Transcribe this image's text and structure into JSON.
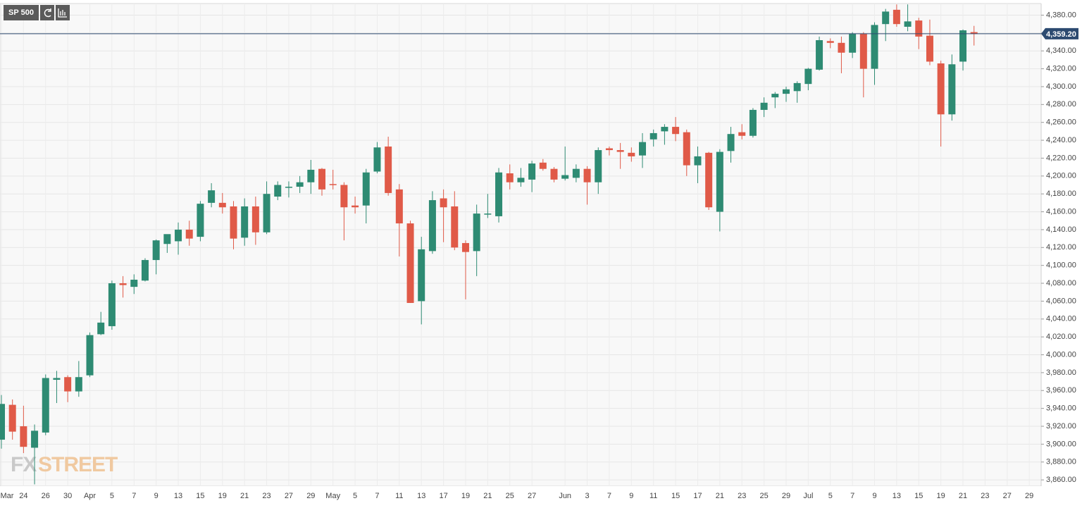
{
  "symbol": "SP 500",
  "watermark": [
    "FX",
    "STREET"
  ],
  "chart_data": {
    "type": "candlestick",
    "categories": [
      "Mar",
      null,
      "24",
      null,
      "26",
      null,
      "30",
      null,
      "Apr",
      null,
      "5",
      null,
      "7",
      null,
      "9",
      null,
      "13",
      null,
      "15",
      null,
      "19",
      null,
      "21",
      null,
      "23",
      null,
      "27",
      null,
      "29",
      null,
      "May",
      null,
      "5",
      null,
      "7",
      null,
      "11",
      null,
      "13",
      null,
      "17",
      null,
      "19",
      null,
      "21",
      null,
      "25",
      null,
      "27",
      null,
      null,
      "Jun",
      null,
      "3",
      null,
      "7",
      null,
      "9",
      null,
      "11",
      null,
      "15",
      null,
      "17",
      null,
      "21",
      null,
      "23",
      null,
      "25",
      null,
      "29",
      null,
      "Jul",
      null,
      "5",
      null,
      "7",
      null,
      "9",
      null,
      "13",
      null,
      "15",
      null,
      "19",
      null,
      "21",
      null,
      "23",
      null,
      "27",
      null,
      "29"
    ],
    "open": [
      3905,
      3944,
      3920,
      3896,
      3913,
      3972,
      3975,
      3959,
      3977,
      4023,
      4032,
      4080,
      4076,
      4083,
      4106,
      4124,
      4127,
      4140,
      4132,
      4170,
      4170,
      4166,
      4131,
      4166,
      4137,
      4177,
      4188,
      4188,
      4193,
      4208,
      4191,
      4190,
      4167,
      4167,
      4205,
      4233,
      4185,
      4147,
      4060,
      4116,
      4175,
      4166,
      4125,
      4116,
      4158,
      4155,
      4203,
      4193,
      4196,
      4215,
      4208,
      4197,
      4198,
      4208,
      4193,
      4231,
      4229,
      4226,
      4223,
      4241,
      4250,
      4255,
      4249,
      4212,
      4226,
      4160,
      4228,
      4249,
      4245,
      4274,
      4288,
      4292,
      4295,
      4303,
      4319,
      4351,
      4349,
      4338,
      4359,
      4320,
      4370,
      4386,
      4367,
      4374,
      4357,
      4326,
      4269,
      4328,
      4361,
      null,
      null,
      null,
      null,
      null
    ],
    "high": [
      3955,
      3950,
      3943,
      3922,
      3978,
      3982,
      3977,
      3993,
      4025,
      4048,
      4083,
      4088,
      4090,
      4108,
      4129,
      4132,
      4148,
      4150,
      4172,
      4192,
      4181,
      4172,
      4175,
      4177,
      4194,
      4194,
      4194,
      4200,
      4218,
      4209,
      4207,
      4193,
      4177,
      4208,
      4238,
      4244,
      4191,
      4150,
      4132,
      4183,
      4185,
      4183,
      4128,
      4168,
      4180,
      4209,
      4213,
      4209,
      4217,
      4219,
      4210,
      4233,
      4213,
      4211,
      4232,
      4233,
      4237,
      4232,
      4248,
      4252,
      4258,
      4266,
      4252,
      4233,
      4227,
      4230,
      4255,
      4258,
      4276,
      4288,
      4294,
      4300,
      4306,
      4321,
      4356,
      4354,
      4356,
      4361,
      4361,
      4372,
      4387,
      4392,
      4392,
      4377,
      4375,
      4329,
      4336,
      4364,
      4368,
      null,
      null,
      null,
      null,
      null
    ],
    "low": [
      3895,
      3905,
      3890,
      3855,
      3910,
      3946,
      3947,
      3953,
      3975,
      4022,
      4028,
      4064,
      4068,
      4082,
      4090,
      4114,
      4112,
      4122,
      4127,
      4165,
      4158,
      4118,
      4122,
      4123,
      4135,
      4173,
      4176,
      4181,
      4180,
      4178,
      4185,
      4128,
      4158,
      4147,
      4203,
      4178,
      4110,
      4058,
      4034,
      4113,
      4126,
      4117,
      4062,
      4088,
      4153,
      4148,
      4185,
      4188,
      4182,
      4206,
      4193,
      4195,
      4193,
      4168,
      4180,
      4223,
      4208,
      4216,
      4209,
      4233,
      4235,
      4239,
      4200,
      4192,
      4162,
      4138,
      4215,
      4241,
      4243,
      4266,
      4276,
      4283,
      4282,
      4296,
      4318,
      4343,
      4315,
      4332,
      4288,
      4302,
      4351,
      4367,
      4362,
      4342,
      4324,
      4233,
      4262,
      4318,
      4346,
      null,
      null,
      null,
      null,
      null
    ],
    "close": [
      3945,
      3914,
      3897,
      3915,
      3974,
      3974,
      3959,
      3975,
      4022,
      4036,
      4080,
      4078,
      4084,
      4106,
      4128,
      4135,
      4140,
      4130,
      4169,
      4184,
      4165,
      4130,
      4166,
      4137,
      4180,
      4190,
      4188,
      4193,
      4207,
      4185,
      4190,
      4165,
      4165,
      4204,
      4232,
      4181,
      4147,
      4058,
      4118,
      4173,
      4165,
      4120,
      4115,
      4158,
      4158,
      4204,
      4193,
      4198,
      4214,
      4208,
      4196,
      4201,
      4208,
      4193,
      4229,
      4229,
      4227,
      4222,
      4238,
      4248,
      4255,
      4247,
      4212,
      4222,
      4165,
      4227,
      4247,
      4245,
      4274,
      4282,
      4292,
      4297,
      4304,
      4320,
      4352,
      4349,
      4338,
      4359,
      4320,
      4369,
      4384,
      4370,
      4373,
      4356,
      4328,
      4269,
      4325,
      4363,
      4359.2,
      null,
      null,
      null,
      null,
      null
    ],
    "up_color": "#2e8b73",
    "down_color": "#e05a48",
    "last_price": {
      "value": 4359.2,
      "label": "4,359.20"
    },
    "ylim": [
      3853,
      4393
    ],
    "yticks": [
      {
        "value": 3860,
        "label": "3,860.00"
      },
      {
        "value": 3880,
        "label": "3,880.00"
      },
      {
        "value": 3900,
        "label": "3,900.00"
      },
      {
        "value": 3920,
        "label": "3,920.00"
      },
      {
        "value": 3940,
        "label": "3,940.00"
      },
      {
        "value": 3960,
        "label": "3,960.00"
      },
      {
        "value": 3980,
        "label": "3,980.00"
      },
      {
        "value": 4000,
        "label": "4,000.00"
      },
      {
        "value": 4020,
        "label": "4,020.00"
      },
      {
        "value": 4040,
        "label": "4,040.00"
      },
      {
        "value": 4060,
        "label": "4,060.00"
      },
      {
        "value": 4080,
        "label": "4,080.00"
      },
      {
        "value": 4100,
        "label": "4,100.00"
      },
      {
        "value": 4120,
        "label": "4,120.00"
      },
      {
        "value": 4140,
        "label": "4,140.00"
      },
      {
        "value": 4160,
        "label": "4,160.00"
      },
      {
        "value": 4180,
        "label": "4,180.00"
      },
      {
        "value": 4200,
        "label": "4,200.00"
      },
      {
        "value": 4220,
        "label": "4,220.00"
      },
      {
        "value": 4240,
        "label": "4,240.00"
      },
      {
        "value": 4260,
        "label": "4,260.00"
      },
      {
        "value": 4280,
        "label": "4,280.00"
      },
      {
        "value": 4300,
        "label": "4,300.00"
      },
      {
        "value": 4320,
        "label": "4,320.00"
      },
      {
        "value": 4340,
        "label": "4,340.00"
      },
      {
        "value": 4360,
        "label": "4,360.00"
      },
      {
        "value": 4380,
        "label": "4,380.00"
      }
    ],
    "grid": true
  }
}
